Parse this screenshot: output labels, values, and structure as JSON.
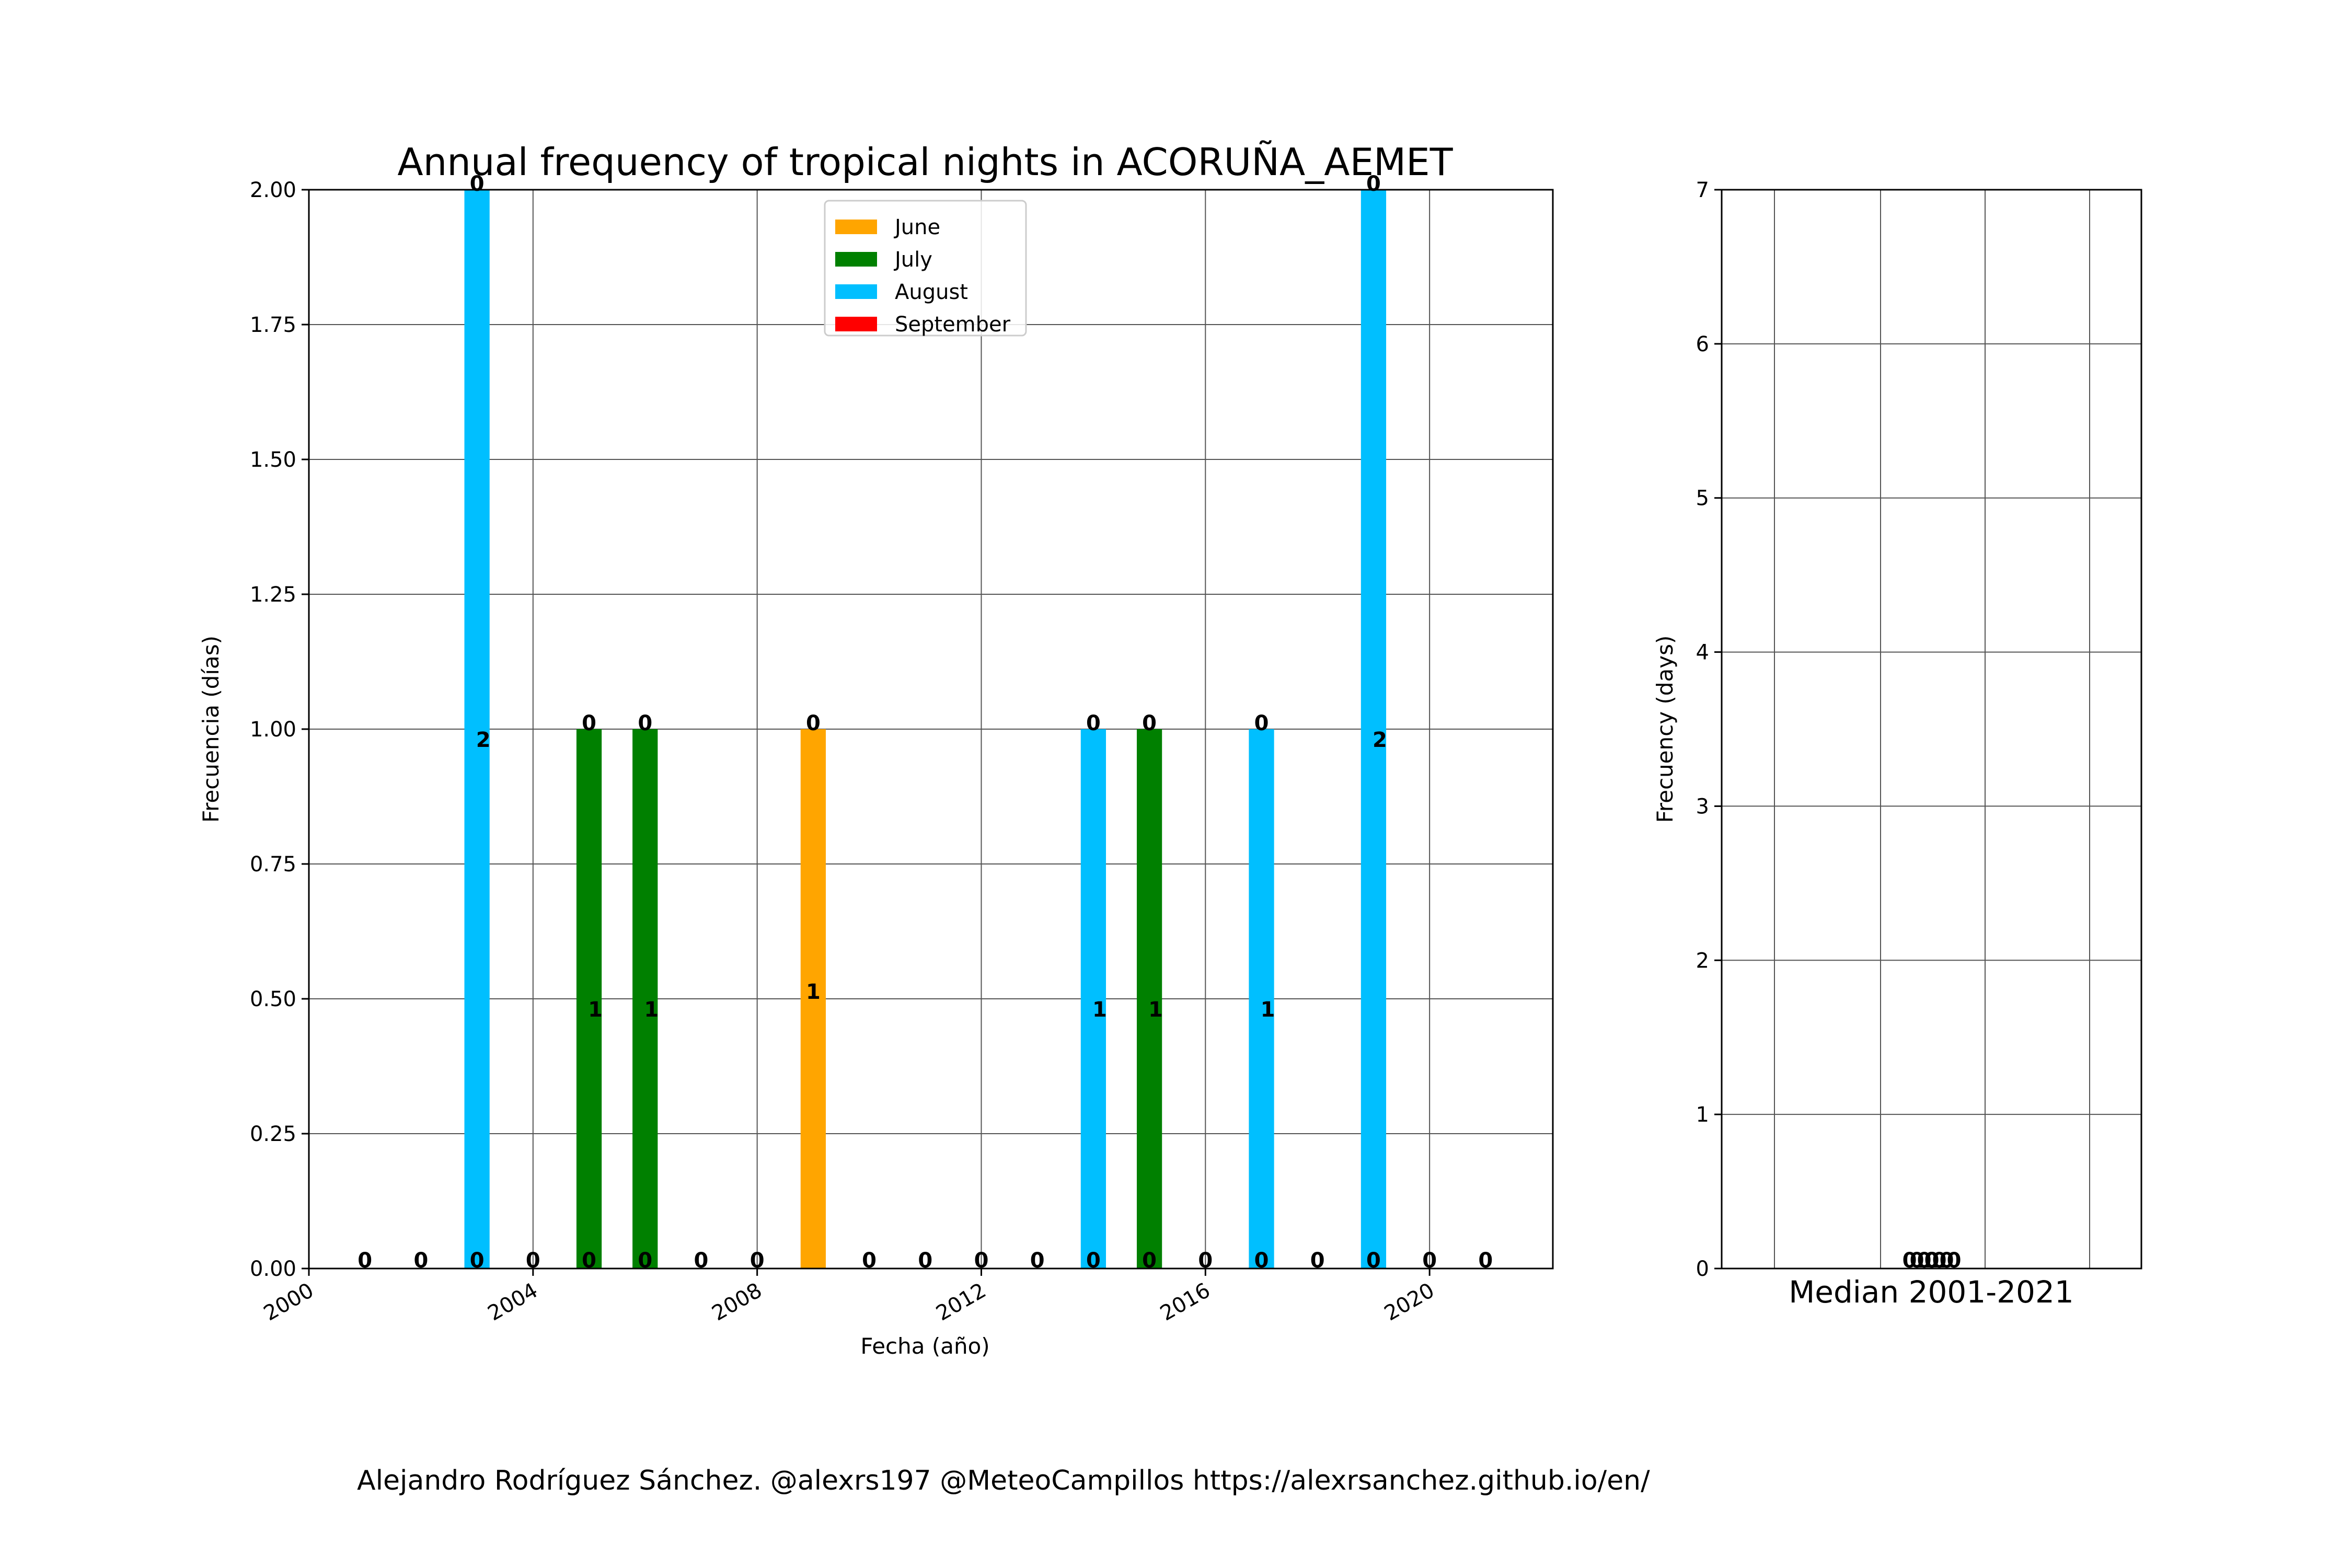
{
  "credits": "Alejandro Rodríguez Sánchez. @alexrs197 @MeteoCampillos   https://alexrsanchez.github.io/en/",
  "chart_data": [
    {
      "type": "bar",
      "stacked": true,
      "title": "Annual frequency of tropical nights in ACORUÑA_AEMET",
      "xlabel": "Fecha (año)",
      "ylabel": "Frecuencia (días)",
      "xlim": [
        2000,
        2022.2
      ],
      "ylim": [
        0,
        2
      ],
      "grid": true,
      "legend_position": "top-center",
      "x_ticks": [
        "2000",
        "2004",
        "2008",
        "2012",
        "2016",
        "2020"
      ],
      "y_ticks": [
        "0.00",
        "0.25",
        "0.50",
        "0.75",
        "1.00",
        "1.25",
        "1.50",
        "1.75",
        "2.00"
      ],
      "categories": [
        2001,
        2002,
        2003,
        2004,
        2005,
        2006,
        2007,
        2008,
        2009,
        2010,
        2011,
        2012,
        2013,
        2014,
        2015,
        2016,
        2017,
        2018,
        2019,
        2020,
        2021
      ],
      "series": [
        {
          "name": "June",
          "color": "#FFA500",
          "values": [
            0,
            0,
            0,
            0,
            0,
            0,
            0,
            0,
            1,
            0,
            0,
            0,
            0,
            0,
            0,
            0,
            0,
            0,
            0,
            0,
            0
          ]
        },
        {
          "name": "July",
          "color": "#008000",
          "values": [
            0,
            0,
            0,
            0,
            1,
            1,
            0,
            0,
            0,
            0,
            0,
            0,
            0,
            0,
            1,
            0,
            0,
            0,
            0,
            0,
            0
          ]
        },
        {
          "name": "August",
          "color": "#00BFFF",
          "values": [
            0,
            0,
            2,
            0,
            0,
            0,
            0,
            0,
            0,
            0,
            0,
            0,
            0,
            1,
            0,
            0,
            1,
            0,
            2,
            0,
            0
          ]
        },
        {
          "name": "September",
          "color": "#FF0000",
          "values": [
            0,
            0,
            0,
            0,
            0,
            0,
            0,
            0,
            0,
            0,
            0,
            0,
            0,
            0,
            0,
            0,
            0,
            0,
            0,
            0,
            0
          ]
        }
      ],
      "bar_labels_bottom": [
        "0",
        "0",
        "0",
        "0",
        "0",
        "0",
        "0",
        "0",
        "",
        "0",
        "0",
        "0",
        "0",
        "0",
        "0",
        "0",
        "0",
        "0",
        "0",
        "0",
        "0"
      ],
      "bar_labels_middle": [
        "",
        "",
        "2",
        "",
        "1",
        "1",
        "",
        "",
        "1",
        "",
        "",
        "",
        "",
        "1",
        "1",
        "",
        "1",
        "",
        "2",
        "",
        ""
      ],
      "bar_labels_top": [
        "",
        "",
        "0",
        "",
        "0",
        "0",
        "",
        "",
        "0",
        "",
        "",
        "",
        "",
        "0",
        "0",
        "",
        "0",
        "",
        "0",
        "",
        ""
      ]
    },
    {
      "type": "bar",
      "xlabel": "Median 2001-2021",
      "ylabel": "Frecuency (days)",
      "ylim": [
        0,
        7
      ],
      "grid": true,
      "y_ticks": [
        "0",
        "1",
        "2",
        "3",
        "4",
        "5",
        "6",
        "7"
      ],
      "values": [
        0,
        0,
        0,
        0
      ],
      "value_labels": [
        "0.0",
        "0.0",
        "0.0",
        "0.0"
      ]
    }
  ]
}
